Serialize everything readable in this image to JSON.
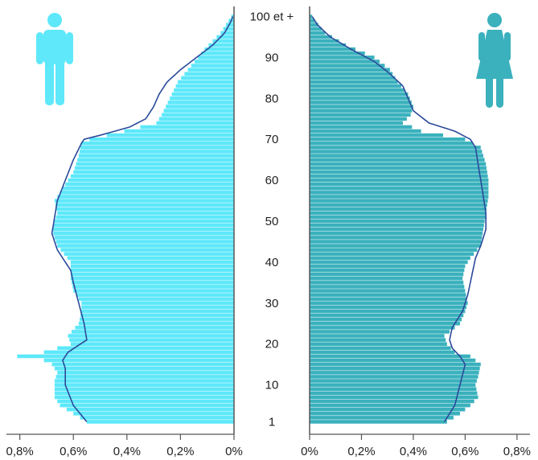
{
  "chart_data": {
    "type": "bar",
    "subtype": "population-pyramid",
    "age_axis_labels": [
      "1",
      "10",
      "20",
      "30",
      "40",
      "50",
      "60",
      "70",
      "80",
      "90",
      "100 et +"
    ],
    "age_axis_values": [
      1,
      10,
      20,
      30,
      40,
      50,
      60,
      70,
      80,
      90,
      100
    ],
    "left_axis": {
      "ticks": [
        0.8,
        0.6,
        0.4,
        0.2,
        0
      ],
      "labels": [
        "0,8%",
        "0,6%",
        "0,4%",
        "0,2%",
        "0%"
      ],
      "range": [
        0,
        0.85
      ]
    },
    "right_axis": {
      "ticks": [
        0,
        0.2,
        0.4,
        0.6,
        0.8
      ],
      "labels": [
        "0%",
        "0,2%",
        "0,4%",
        "0,6%",
        "0,8%"
      ],
      "range": [
        0,
        0.85
      ]
    },
    "colors": {
      "men_bars": "#5ee8fa",
      "women_bars": "#3ab1bd",
      "outline": "#2b4a9a",
      "axis": "#555555",
      "men_icon": "#5ee8fa",
      "women_icon": "#3ab1bd"
    },
    "icons": {
      "left": "man-icon",
      "right": "woman-icon"
    },
    "men": {
      "bar_keys": [
        [
          1,
          0.55
        ],
        [
          3,
          0.6
        ],
        [
          5,
          0.65
        ],
        [
          7,
          0.67
        ],
        [
          9,
          0.67
        ],
        [
          11,
          0.67
        ],
        [
          13,
          0.66
        ],
        [
          15,
          0.68
        ],
        [
          16,
          0.71
        ],
        [
          17,
          0.81
        ],
        [
          18,
          0.71
        ],
        [
          20,
          0.61
        ],
        [
          22,
          0.62
        ],
        [
          25,
          0.58
        ],
        [
          28,
          0.57
        ],
        [
          30,
          0.57
        ],
        [
          33,
          0.6
        ],
        [
          36,
          0.61
        ],
        [
          40,
          0.61
        ],
        [
          44,
          0.66
        ],
        [
          48,
          0.68
        ],
        [
          52,
          0.66
        ],
        [
          55,
          0.67
        ],
        [
          58,
          0.64
        ],
        [
          62,
          0.6
        ],
        [
          66,
          0.58
        ],
        [
          69,
          0.57
        ],
        [
          70,
          0.54
        ],
        [
          72,
          0.41
        ],
        [
          74,
          0.29
        ],
        [
          76,
          0.27
        ],
        [
          80,
          0.24
        ],
        [
          84,
          0.21
        ],
        [
          88,
          0.16
        ],
        [
          92,
          0.11
        ],
        [
          96,
          0.05
        ],
        [
          100,
          0.01
        ]
      ],
      "outline_keys": [
        [
          1,
          0.55
        ],
        [
          5,
          0.6
        ],
        [
          10,
          0.63
        ],
        [
          14,
          0.63
        ],
        [
          16,
          0.64
        ],
        [
          18,
          0.62
        ],
        [
          21,
          0.55
        ],
        [
          25,
          0.56
        ],
        [
          30,
          0.58
        ],
        [
          35,
          0.6
        ],
        [
          38,
          0.61
        ],
        [
          40,
          0.63
        ],
        [
          43,
          0.66
        ],
        [
          47,
          0.68
        ],
        [
          51,
          0.67
        ],
        [
          55,
          0.66
        ],
        [
          60,
          0.63
        ],
        [
          65,
          0.6
        ],
        [
          69,
          0.57
        ],
        [
          70,
          0.56
        ],
        [
          71,
          0.5
        ],
        [
          73,
          0.39
        ],
        [
          75,
          0.33
        ],
        [
          78,
          0.3
        ],
        [
          81,
          0.28
        ],
        [
          84,
          0.25
        ],
        [
          87,
          0.2
        ],
        [
          90,
          0.14
        ],
        [
          93,
          0.08
        ],
        [
          96,
          0.035
        ],
        [
          99,
          0.01
        ],
        [
          100,
          0.005
        ]
      ]
    },
    "women": {
      "bar_keys": [
        [
          1,
          0.53
        ],
        [
          3,
          0.58
        ],
        [
          5,
          0.62
        ],
        [
          7,
          0.65
        ],
        [
          10,
          0.64
        ],
        [
          12,
          0.65
        ],
        [
          15,
          0.66
        ],
        [
          17,
          0.62
        ],
        [
          18,
          0.56
        ],
        [
          20,
          0.53
        ],
        [
          22,
          0.52
        ],
        [
          25,
          0.58
        ],
        [
          28,
          0.6
        ],
        [
          30,
          0.61
        ],
        [
          33,
          0.6
        ],
        [
          36,
          0.59
        ],
        [
          39,
          0.6
        ],
        [
          41,
          0.62
        ],
        [
          44,
          0.66
        ],
        [
          48,
          0.67
        ],
        [
          52,
          0.68
        ],
        [
          56,
          0.69
        ],
        [
          60,
          0.69
        ],
        [
          64,
          0.68
        ],
        [
          68,
          0.66
        ],
        [
          70,
          0.6
        ],
        [
          72,
          0.43
        ],
        [
          74,
          0.36
        ],
        [
          76,
          0.39
        ],
        [
          78,
          0.4
        ],
        [
          81,
          0.38
        ],
        [
          84,
          0.34
        ],
        [
          87,
          0.31
        ],
        [
          90,
          0.25
        ],
        [
          93,
          0.14
        ],
        [
          96,
          0.06
        ],
        [
          99,
          0.02
        ],
        [
          100,
          0.01
        ]
      ],
      "outline_keys": [
        [
          1,
          0.52
        ],
        [
          5,
          0.56
        ],
        [
          10,
          0.58
        ],
        [
          15,
          0.6
        ],
        [
          17,
          0.58
        ],
        [
          19,
          0.55
        ],
        [
          21,
          0.54
        ],
        [
          24,
          0.55
        ],
        [
          28,
          0.59
        ],
        [
          32,
          0.61
        ],
        [
          35,
          0.62
        ],
        [
          38,
          0.63
        ],
        [
          41,
          0.64
        ],
        [
          44,
          0.66
        ],
        [
          48,
          0.68
        ],
        [
          52,
          0.68
        ],
        [
          56,
          0.67
        ],
        [
          60,
          0.66
        ],
        [
          64,
          0.65
        ],
        [
          68,
          0.64
        ],
        [
          70,
          0.62
        ],
        [
          72,
          0.56
        ],
        [
          74,
          0.46
        ],
        [
          77,
          0.4
        ],
        [
          80,
          0.38
        ],
        [
          83,
          0.36
        ],
        [
          86,
          0.31
        ],
        [
          89,
          0.25
        ],
        [
          92,
          0.16
        ],
        [
          95,
          0.08
        ],
        [
          98,
          0.03
        ],
        [
          100,
          0.01
        ]
      ]
    }
  }
}
